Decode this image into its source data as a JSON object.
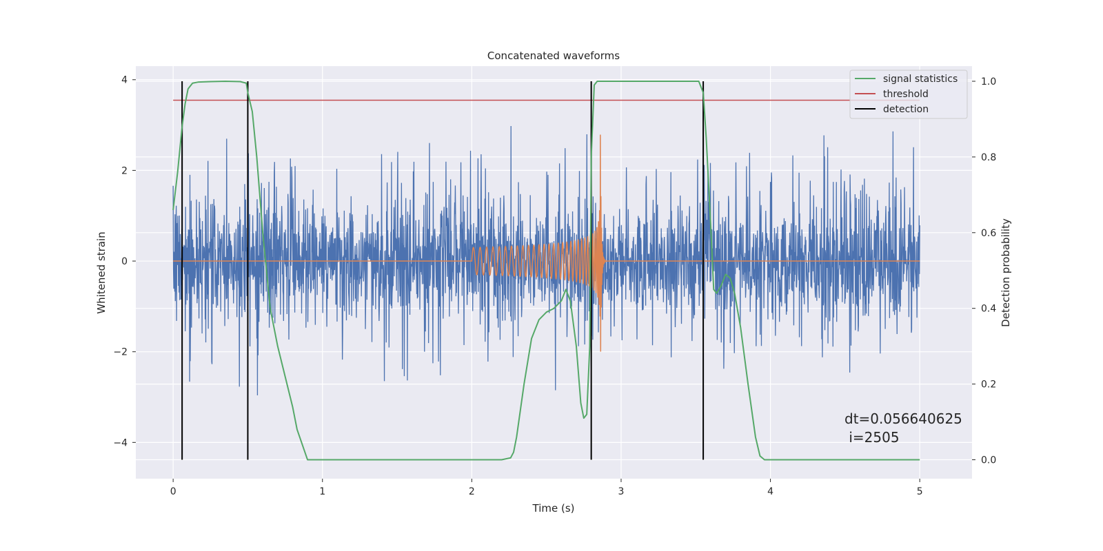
{
  "chart_data": {
    "type": "line",
    "title": "Concatenated waveforms",
    "xlabel": "Time (s)",
    "ylabel_left": "Whitened strain",
    "ylabel_right": "Detection probability",
    "xlim": [
      -0.25,
      5.35
    ],
    "ylim_left": [
      -4.8,
      4.3
    ],
    "ylim_right": [
      -0.05,
      1.04
    ],
    "xticks": [
      0,
      1,
      2,
      3,
      4,
      5
    ],
    "xtick_labels": [
      "0",
      "1",
      "2",
      "3",
      "4",
      "5"
    ],
    "yticks_left": [
      4,
      2,
      0,
      -2,
      -4
    ],
    "ytick_labels_left": [
      "4",
      "2",
      "0",
      "−2",
      "−4"
    ],
    "yticks_right": [
      1.0,
      0.8,
      0.6,
      0.4,
      0.2,
      0.0
    ],
    "ytick_labels_right": [
      "1.0",
      "0.8",
      "0.6",
      "0.4",
      "0.2",
      "0.0"
    ],
    "grid": true,
    "legend_position": "top-right",
    "legend": [
      {
        "label": "signal statistics",
        "color": "#55a868"
      },
      {
        "label": "threshold",
        "color": "#c44e52"
      },
      {
        "label": "detection",
        "color": "#000000"
      }
    ],
    "series": [
      {
        "name": "whitened strain (noise)",
        "axis": "left",
        "color": "#4c72b0",
        "x_range": [
          0,
          5
        ],
        "description_stats": {
          "typical_abs": 1.2,
          "peak_max": 3.7,
          "peak_min": -4.3
        }
      },
      {
        "name": "injected waveform",
        "axis": "left",
        "color": "#dd8452",
        "x_range": [
          2.0,
          2.9
        ],
        "merger_time": 2.86,
        "peak_amplitude": 3.3
      },
      {
        "name": "signal statistics",
        "axis": "right",
        "color": "#55a868",
        "x": [
          0.0,
          0.03,
          0.06,
          0.08,
          0.1,
          0.13,
          0.17,
          0.25,
          0.35,
          0.45,
          0.49,
          0.5,
          0.53,
          0.56,
          0.6,
          0.65,
          0.7,
          0.75,
          0.8,
          0.83,
          0.9,
          1.0,
          1.5,
          2.0,
          2.2,
          2.26,
          2.28,
          2.3,
          2.35,
          2.4,
          2.45,
          2.5,
          2.55,
          2.6,
          2.63,
          2.66,
          2.7,
          2.73,
          2.75,
          2.77,
          2.79,
          2.8,
          2.82,
          2.84,
          2.87,
          2.9,
          3.0,
          3.2,
          3.4,
          3.52,
          3.55,
          3.57,
          3.6,
          3.62,
          3.64,
          3.67,
          3.7,
          3.73,
          3.76,
          3.8,
          3.85,
          3.9,
          3.93,
          3.96,
          4.0,
          4.5,
          5.0
        ],
        "y": [
          0.66,
          0.76,
          0.88,
          0.94,
          0.98,
          0.995,
          0.998,
          0.999,
          1.0,
          0.999,
          0.995,
          0.97,
          0.92,
          0.8,
          0.6,
          0.4,
          0.3,
          0.22,
          0.14,
          0.08,
          0.0,
          0.0,
          0.0,
          0.0,
          0.0,
          0.005,
          0.02,
          0.06,
          0.2,
          0.32,
          0.37,
          0.39,
          0.4,
          0.42,
          0.45,
          0.42,
          0.3,
          0.15,
          0.11,
          0.12,
          0.3,
          0.8,
          0.99,
          1.0,
          1.0,
          1.0,
          1.0,
          1.0,
          1.0,
          1.0,
          0.97,
          0.85,
          0.62,
          0.45,
          0.44,
          0.46,
          0.49,
          0.48,
          0.44,
          0.35,
          0.2,
          0.06,
          0.01,
          0.0,
          0.0,
          0.0,
          0.0
        ]
      },
      {
        "name": "threshold",
        "axis": "right",
        "color": "#c44e52",
        "x": [
          0,
          5
        ],
        "y": [
          0.95,
          0.95
        ]
      },
      {
        "name": "detection",
        "axis": "right",
        "color": "#000000",
        "vertical_lines_x": [
          0.06,
          0.5,
          2.8,
          3.55
        ],
        "y_range": [
          0.0,
          1.0
        ]
      }
    ],
    "annotations": [
      "dt=0.056640625",
      " i=2505"
    ]
  }
}
